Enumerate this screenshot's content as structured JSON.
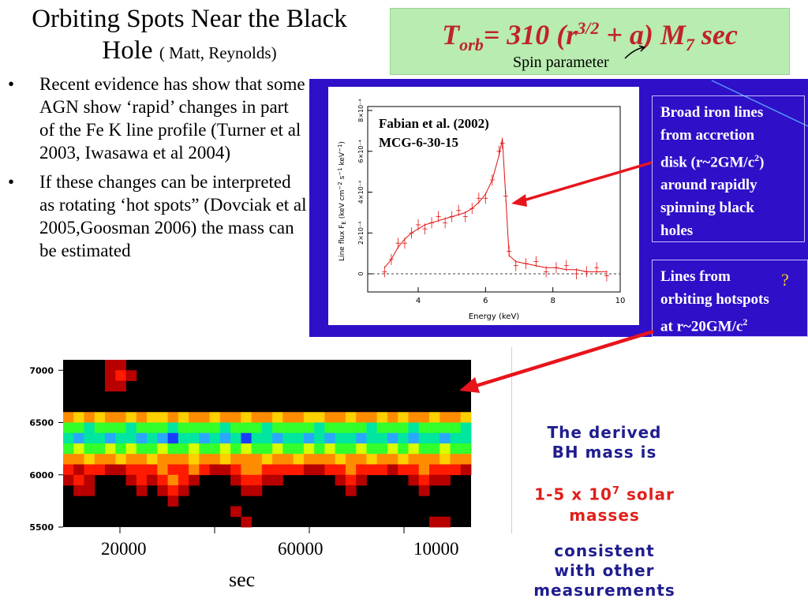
{
  "title": {
    "main": "Orbiting Spots Near the Black Hole",
    "authors": "( Matt, Reynolds)"
  },
  "formula": {
    "T": "T",
    "sub": "orb",
    "eq": "= 310 (r",
    "sup": "3/2",
    "rest": " + a) M",
    "m_sub": "7",
    "unit": "  sec"
  },
  "spin_label": "Spin parameter",
  "bullets": [
    "Recent evidence has show that some AGN show ‘rapid’ changes in part of the Fe K line profile (Turner et al 2003, Iwasawa et al 2004)",
    "If these changes can be interpreted as rotating ‘hot spots” (Dovciak et al 2005,Goosman 2006) the mass can be estimated"
  ],
  "bullet_symbol": "•",
  "spectrum": {
    "ref_line1": "Fabian et al. (2002)",
    "ref_line2": "MCG-6-30-15",
    "xlabel": "Energy (keV)",
    "ylabel": "Line flux F",
    "ylabel_sub": "E",
    "ylabel_units": " (keV cm",
    "ylabel_units2": "−2",
    "ylabel_units3": " s",
    "ylabel_units4": "−1",
    "ylabel_units5": " keV",
    "ylabel_units6": "−1",
    "ylabel_units7": ")",
    "xticks": [
      "4",
      "6",
      "8",
      "10"
    ],
    "yticks": [
      "0",
      "2×10⁻⁴",
      "4×10⁻⁴",
      "6×10⁻⁴",
      "8×10⁻⁴"
    ]
  },
  "info1": {
    "l1": "Broad iron lines",
    "l2": "from accretion",
    "l3a": "disk (r~2GM/c",
    "l3sup": "2",
    "l3b": ")",
    "l4": "around rapidly",
    "l5": "spinning black",
    "l6": "holes"
  },
  "info2": {
    "l1": "Lines from",
    "l2": "orbiting hotspots",
    "l3": "at r~20GM/c",
    "l3sup": "2",
    "q": "?"
  },
  "heatmap": {
    "yticks": [
      "7000",
      "6500",
      "6000",
      "5500"
    ],
    "xticks": [
      "20000",
      "60000",
      "10000"
    ],
    "xunit": "sec"
  },
  "mass": {
    "l1": "The derived",
    "l2": "BH mass is",
    "l3a": "1-5 x 10",
    "l3sup": "7",
    "l3b": " solar",
    "l4": "masses",
    "l5": "consistent",
    "l6": "with other",
    "l7": "measurements"
  },
  "colors": {
    "panel": "#2f0fc8",
    "formula_bg": "#b8ecb0",
    "formula_text": "#c0232a",
    "arrow": "#e8141c",
    "mass_blue": "#1f1d8f",
    "mass_red": "#e0201b"
  },
  "chart_data": {
    "type": "heatmap",
    "yticks": [
      7000,
      6500,
      6000,
      5500
    ],
    "xticks": [
      "20000",
      "60000",
      "10000"
    ],
    "xlabel": "sec",
    "rows_energy_eV": [
      7050,
      6950,
      6850,
      6750,
      6650,
      6550,
      6450,
      6350,
      6250,
      6150,
      6050,
      5950,
      5850,
      5750,
      5650,
      5550
    ],
    "intensity": [
      [
        0,
        0,
        0,
        0,
        1,
        1,
        0,
        0,
        0,
        0,
        0,
        0,
        0,
        0,
        0,
        0,
        0,
        0,
        0,
        0,
        0,
        0,
        0,
        0,
        0,
        0,
        0,
        0,
        0,
        0,
        0,
        0,
        0,
        0,
        0,
        0,
        0,
        0,
        0
      ],
      [
        0,
        0,
        0,
        0,
        1,
        2,
        1,
        0,
        0,
        0,
        0,
        0,
        0,
        0,
        0,
        0,
        0,
        0,
        0,
        0,
        0,
        0,
        0,
        0,
        0,
        0,
        0,
        0,
        0,
        0,
        0,
        0,
        0,
        0,
        0,
        0,
        0,
        0,
        0
      ],
      [
        0,
        0,
        0,
        0,
        1,
        1,
        0,
        0,
        0,
        0,
        0,
        0,
        0,
        0,
        0,
        0,
        0,
        0,
        0,
        0,
        0,
        0,
        0,
        0,
        0,
        0,
        0,
        0,
        0,
        0,
        0,
        0,
        0,
        0,
        0,
        0,
        0,
        0,
        0
      ],
      [
        0,
        0,
        0,
        0,
        0,
        0,
        0,
        0,
        0,
        0,
        0,
        0,
        0,
        0,
        0,
        0,
        0,
        0,
        0,
        0,
        0,
        0,
        0,
        0,
        0,
        0,
        0,
        0,
        0,
        0,
        0,
        0,
        0,
        0,
        0,
        0,
        0,
        0,
        0
      ],
      [
        0,
        0,
        0,
        0,
        0,
        0,
        0,
        0,
        0,
        0,
        0,
        0,
        0,
        0,
        0,
        0,
        0,
        0,
        0,
        0,
        0,
        0,
        0,
        0,
        0,
        0,
        0,
        0,
        0,
        0,
        0,
        0,
        0,
        0,
        0,
        0,
        0,
        0,
        0
      ],
      [
        3,
        4,
        3,
        4,
        3,
        3,
        4,
        3,
        4,
        4,
        3,
        4,
        3,
        3,
        4,
        3,
        3,
        4,
        3,
        3,
        4,
        3,
        3,
        4,
        4,
        3,
        3,
        4,
        3,
        3,
        4,
        3,
        4,
        3,
        3,
        4,
        3,
        3,
        4
      ],
      [
        6,
        6,
        7,
        6,
        6,
        6,
        7,
        6,
        6,
        6,
        7,
        6,
        6,
        6,
        6,
        7,
        6,
        6,
        6,
        7,
        6,
        6,
        6,
        6,
        7,
        6,
        6,
        6,
        6,
        7,
        6,
        6,
        6,
        7,
        6,
        6,
        6,
        6,
        7
      ],
      [
        7,
        8,
        7,
        7,
        8,
        7,
        7,
        8,
        7,
        8,
        9,
        7,
        7,
        8,
        7,
        8,
        7,
        9,
        7,
        7,
        8,
        7,
        7,
        8,
        7,
        8,
        7,
        7,
        8,
        7,
        7,
        8,
        7,
        8,
        7,
        7,
        8,
        7,
        7
      ],
      [
        6,
        5,
        6,
        6,
        5,
        6,
        5,
        6,
        6,
        5,
        6,
        6,
        5,
        6,
        6,
        5,
        6,
        5,
        6,
        6,
        5,
        6,
        6,
        5,
        6,
        5,
        6,
        6,
        5,
        6,
        6,
        5,
        6,
        5,
        6,
        6,
        5,
        6,
        6
      ],
      [
        3,
        3,
        4,
        3,
        3,
        4,
        3,
        3,
        4,
        3,
        3,
        3,
        4,
        3,
        3,
        4,
        3,
        3,
        3,
        4,
        3,
        3,
        4,
        3,
        3,
        3,
        4,
        3,
        3,
        4,
        3,
        3,
        4,
        3,
        3,
        3,
        4,
        3,
        3
      ],
      [
        2,
        1,
        2,
        2,
        1,
        1,
        2,
        2,
        2,
        3,
        2,
        2,
        3,
        2,
        1,
        1,
        2,
        3,
        3,
        2,
        2,
        2,
        2,
        1,
        1,
        2,
        2,
        3,
        2,
        2,
        2,
        1,
        2,
        2,
        3,
        2,
        2,
        2,
        1
      ],
      [
        1,
        2,
        1,
        0,
        0,
        0,
        1,
        2,
        1,
        2,
        3,
        2,
        1,
        0,
        0,
        0,
        1,
        2,
        2,
        1,
        1,
        0,
        0,
        0,
        0,
        0,
        1,
        2,
        1,
        0,
        0,
        0,
        0,
        1,
        2,
        1,
        1,
        0,
        0
      ],
      [
        0,
        1,
        1,
        0,
        0,
        0,
        0,
        1,
        0,
        1,
        2,
        1,
        0,
        0,
        0,
        0,
        0,
        1,
        1,
        0,
        0,
        0,
        0,
        0,
        0,
        0,
        0,
        1,
        0,
        0,
        0,
        0,
        0,
        0,
        1,
        0,
        0,
        0,
        0
      ],
      [
        0,
        0,
        0,
        0,
        0,
        0,
        0,
        0,
        0,
        0,
        1,
        0,
        0,
        0,
        0,
        0,
        0,
        0,
        0,
        0,
        0,
        0,
        0,
        0,
        0,
        0,
        0,
        0,
        0,
        0,
        0,
        0,
        0,
        0,
        0,
        0,
        0,
        0,
        0
      ],
      [
        0,
        0,
        0,
        0,
        0,
        0,
        0,
        0,
        0,
        0,
        0,
        0,
        0,
        0,
        0,
        0,
        1,
        0,
        0,
        0,
        0,
        0,
        0,
        0,
        0,
        0,
        0,
        0,
        0,
        0,
        0,
        0,
        0,
        0,
        0,
        0,
        0,
        0,
        0
      ],
      [
        0,
        0,
        0,
        0,
        0,
        0,
        0,
        0,
        0,
        0,
        0,
        0,
        0,
        0,
        0,
        0,
        0,
        1,
        0,
        0,
        0,
        0,
        0,
        0,
        0,
        0,
        0,
        0,
        0,
        0,
        0,
        0,
        0,
        0,
        0,
        1,
        1,
        0,
        0
      ]
    ],
    "spectrum_points": {
      "x_keV": [
        3.0,
        3.2,
        3.4,
        3.6,
        3.8,
        4.0,
        4.2,
        4.4,
        4.6,
        4.8,
        5.0,
        5.2,
        5.4,
        5.6,
        5.8,
        6.0,
        6.2,
        6.4,
        6.5,
        6.6,
        6.7,
        6.9,
        7.2,
        7.5,
        7.8,
        8.1,
        8.4,
        8.7,
        9.0,
        9.3,
        9.6
      ],
      "y": [
        0.3,
        0.7,
        1.3,
        1.7,
        2.0,
        2.2,
        2.4,
        2.5,
        2.6,
        2.7,
        2.8,
        2.9,
        3.0,
        3.2,
        3.5,
        3.9,
        4.6,
        5.8,
        6.6,
        3.8,
        0.9,
        0.6,
        0.5,
        0.4,
        0.3,
        0.3,
        0.2,
        0.2,
        0.1,
        0.1,
        0.1
      ]
    }
  }
}
